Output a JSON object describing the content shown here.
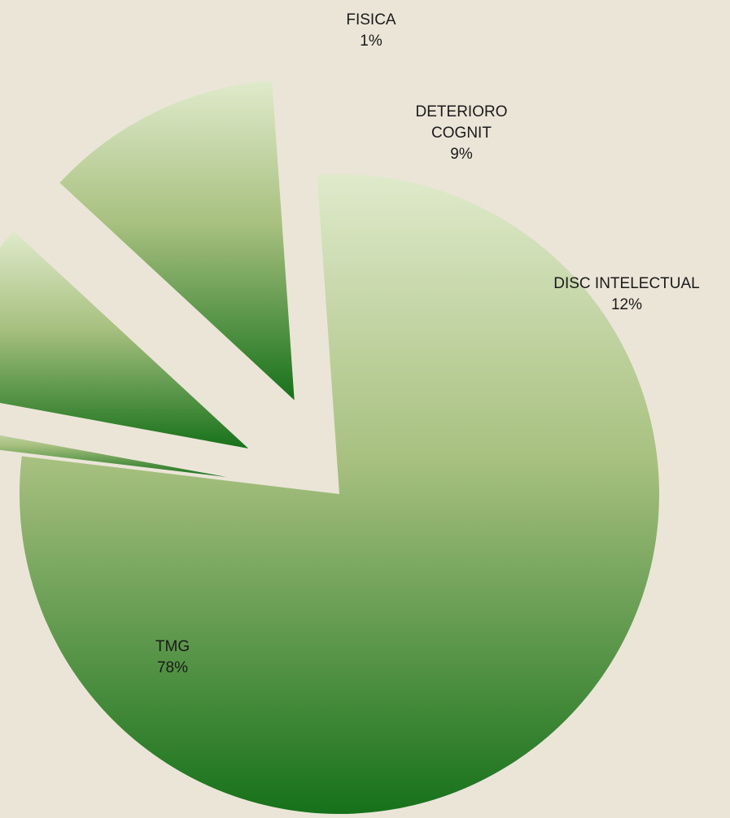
{
  "chart_data": {
    "type": "pie",
    "title": "",
    "exploded": true,
    "gradient": {
      "light": "#dfeacb",
      "mid": "#a7c07f",
      "dark": "#16711a"
    },
    "slices": [
      {
        "label_lines": [
          "TMG"
        ],
        "percent_label": "78%",
        "value": 78
      },
      {
        "label_lines": [
          "FISICA"
        ],
        "percent_label": "1%",
        "value": 1
      },
      {
        "label_lines": [
          "DETERIORO",
          "COGNIT"
        ],
        "percent_label": "9%",
        "value": 9
      },
      {
        "label_lines": [
          "DISC INTELECTUAL"
        ],
        "percent_label": "12%",
        "value": 12
      }
    ]
  }
}
